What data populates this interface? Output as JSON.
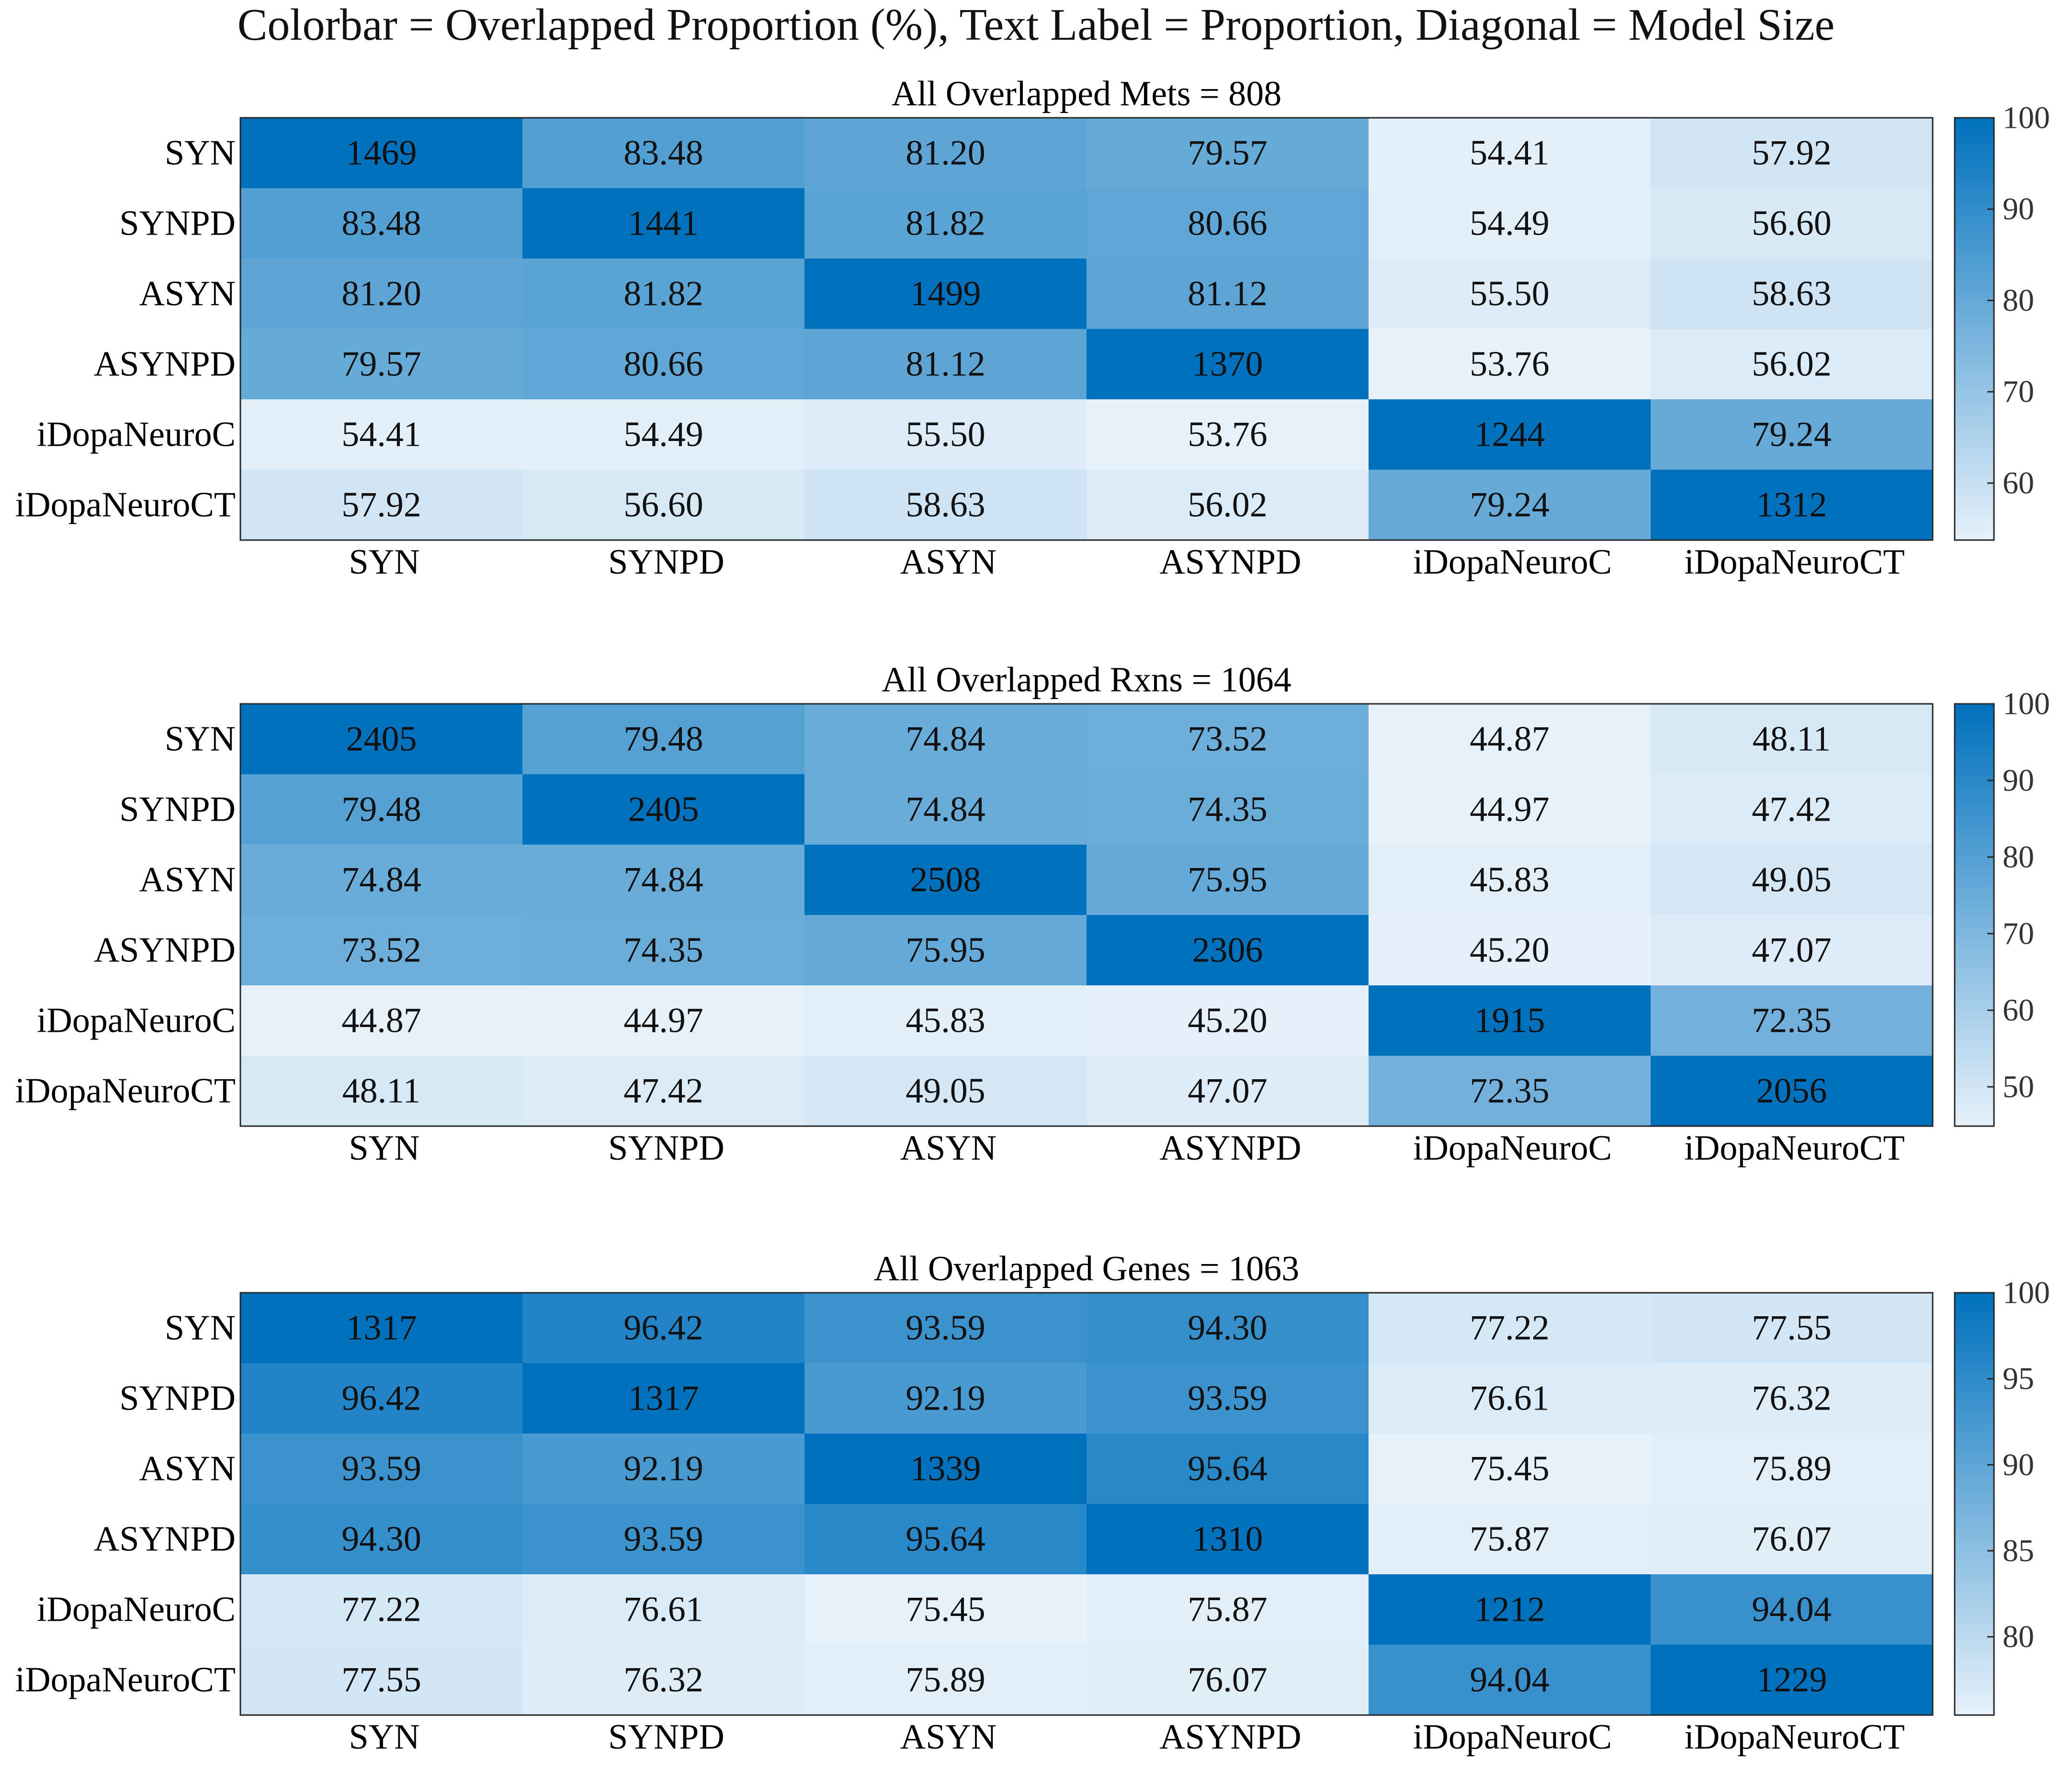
{
  "title": "Colorbar = Overlapped Proportion (%), Text Label = Proportion, Diagonal = Model Size",
  "chart_data": [
    {
      "type": "heatmap",
      "title": "All Overlapped Mets = 808",
      "labels": [
        "SYN",
        "SYNPD",
        "ASYN",
        "ASYNPD",
        "iDopaNeuroC",
        "iDopaNeuroCT"
      ],
      "values": [
        [
          1469,
          83.48,
          81.2,
          79.57,
          54.41,
          57.92
        ],
        [
          83.48,
          1441,
          81.82,
          80.66,
          54.49,
          56.6
        ],
        [
          81.2,
          81.82,
          1499,
          81.12,
          55.5,
          58.63
        ],
        [
          79.57,
          80.66,
          81.12,
          1370,
          53.76,
          56.02
        ],
        [
          54.41,
          54.49,
          55.5,
          53.76,
          1244,
          79.24
        ],
        [
          57.92,
          56.6,
          58.63,
          56.02,
          79.24,
          1312
        ]
      ],
      "text": [
        [
          "1469",
          "83.48",
          "81.20",
          "79.57",
          "54.41",
          "57.92"
        ],
        [
          "83.48",
          "1441",
          "81.82",
          "80.66",
          "54.49",
          "56.60"
        ],
        [
          "81.20",
          "81.82",
          "1499",
          "81.12",
          "55.50",
          "58.63"
        ],
        [
          "79.57",
          "80.66",
          "81.12",
          "1370",
          "53.76",
          "56.02"
        ],
        [
          "54.41",
          "54.49",
          "55.50",
          "53.76",
          "1244",
          "79.24"
        ],
        [
          "57.92",
          "56.60",
          "58.63",
          "56.02",
          "79.24",
          "1312"
        ]
      ],
      "colorbar": {
        "range": [
          53.76,
          100
        ],
        "ticks": [
          60,
          70,
          80,
          90,
          100
        ]
      }
    },
    {
      "type": "heatmap",
      "title": "All Overlapped Rxns = 1064",
      "labels": [
        "SYN",
        "SYNPD",
        "ASYN",
        "ASYNPD",
        "iDopaNeuroC",
        "iDopaNeuroCT"
      ],
      "values": [
        [
          2405,
          79.48,
          74.84,
          73.52,
          44.87,
          48.11
        ],
        [
          79.48,
          2405,
          74.84,
          74.35,
          44.97,
          47.42
        ],
        [
          74.84,
          74.84,
          2508,
          75.95,
          45.83,
          49.05
        ],
        [
          73.52,
          74.35,
          75.95,
          2306,
          45.2,
          47.07
        ],
        [
          44.87,
          44.97,
          45.83,
          45.2,
          1915,
          72.35
        ],
        [
          48.11,
          47.42,
          49.05,
          47.07,
          72.35,
          2056
        ]
      ],
      "text": [
        [
          "2405",
          "79.48",
          "74.84",
          "73.52",
          "44.87",
          "48.11"
        ],
        [
          "79.48",
          "2405",
          "74.84",
          "74.35",
          "44.97",
          "47.42"
        ],
        [
          "74.84",
          "74.84",
          "2508",
          "75.95",
          "45.83",
          "49.05"
        ],
        [
          "73.52",
          "74.35",
          "75.95",
          "2306",
          "45.20",
          "47.07"
        ],
        [
          "44.87",
          "44.97",
          "45.83",
          "45.20",
          "1915",
          "72.35"
        ],
        [
          "48.11",
          "47.42",
          "49.05",
          "47.07",
          "72.35",
          "2056"
        ]
      ],
      "colorbar": {
        "range": [
          44.87,
          100
        ],
        "ticks": [
          50,
          60,
          70,
          80,
          90,
          100
        ]
      }
    },
    {
      "type": "heatmap",
      "title": "All Overlapped Genes = 1063",
      "labels": [
        "SYN",
        "SYNPD",
        "ASYN",
        "ASYNPD",
        "iDopaNeuroC",
        "iDopaNeuroCT"
      ],
      "values": [
        [
          1317,
          96.42,
          93.59,
          94.3,
          77.22,
          77.55
        ],
        [
          96.42,
          1317,
          92.19,
          93.59,
          76.61,
          76.32
        ],
        [
          93.59,
          92.19,
          1339,
          95.64,
          75.45,
          75.89
        ],
        [
          94.3,
          93.59,
          95.64,
          1310,
          75.87,
          76.07
        ],
        [
          77.22,
          76.61,
          75.45,
          75.87,
          1212,
          94.04
        ],
        [
          77.55,
          76.32,
          75.89,
          76.07,
          94.04,
          1229
        ]
      ],
      "text": [
        [
          "1317",
          "96.42",
          "93.59",
          "94.30",
          "77.22",
          "77.55"
        ],
        [
          "96.42",
          "1317",
          "92.19",
          "93.59",
          "76.61",
          "76.32"
        ],
        [
          "93.59",
          "92.19",
          "1339",
          "95.64",
          "75.45",
          "75.89"
        ],
        [
          "94.30",
          "93.59",
          "95.64",
          "1310",
          "75.87",
          "76.07"
        ],
        [
          "77.22",
          "76.61",
          "75.45",
          "75.87",
          "1212",
          "94.04"
        ],
        [
          "77.55",
          "76.32",
          "75.89",
          "76.07",
          "94.04",
          "1229"
        ]
      ],
      "colorbar": {
        "range": [
          75.45,
          100
        ],
        "ticks": [
          80,
          85,
          90,
          95,
          100
        ]
      }
    }
  ],
  "colors": {
    "low": "#e6f1fa",
    "high": "#0071bd",
    "frame": "#262626",
    "text": "#111111"
  }
}
